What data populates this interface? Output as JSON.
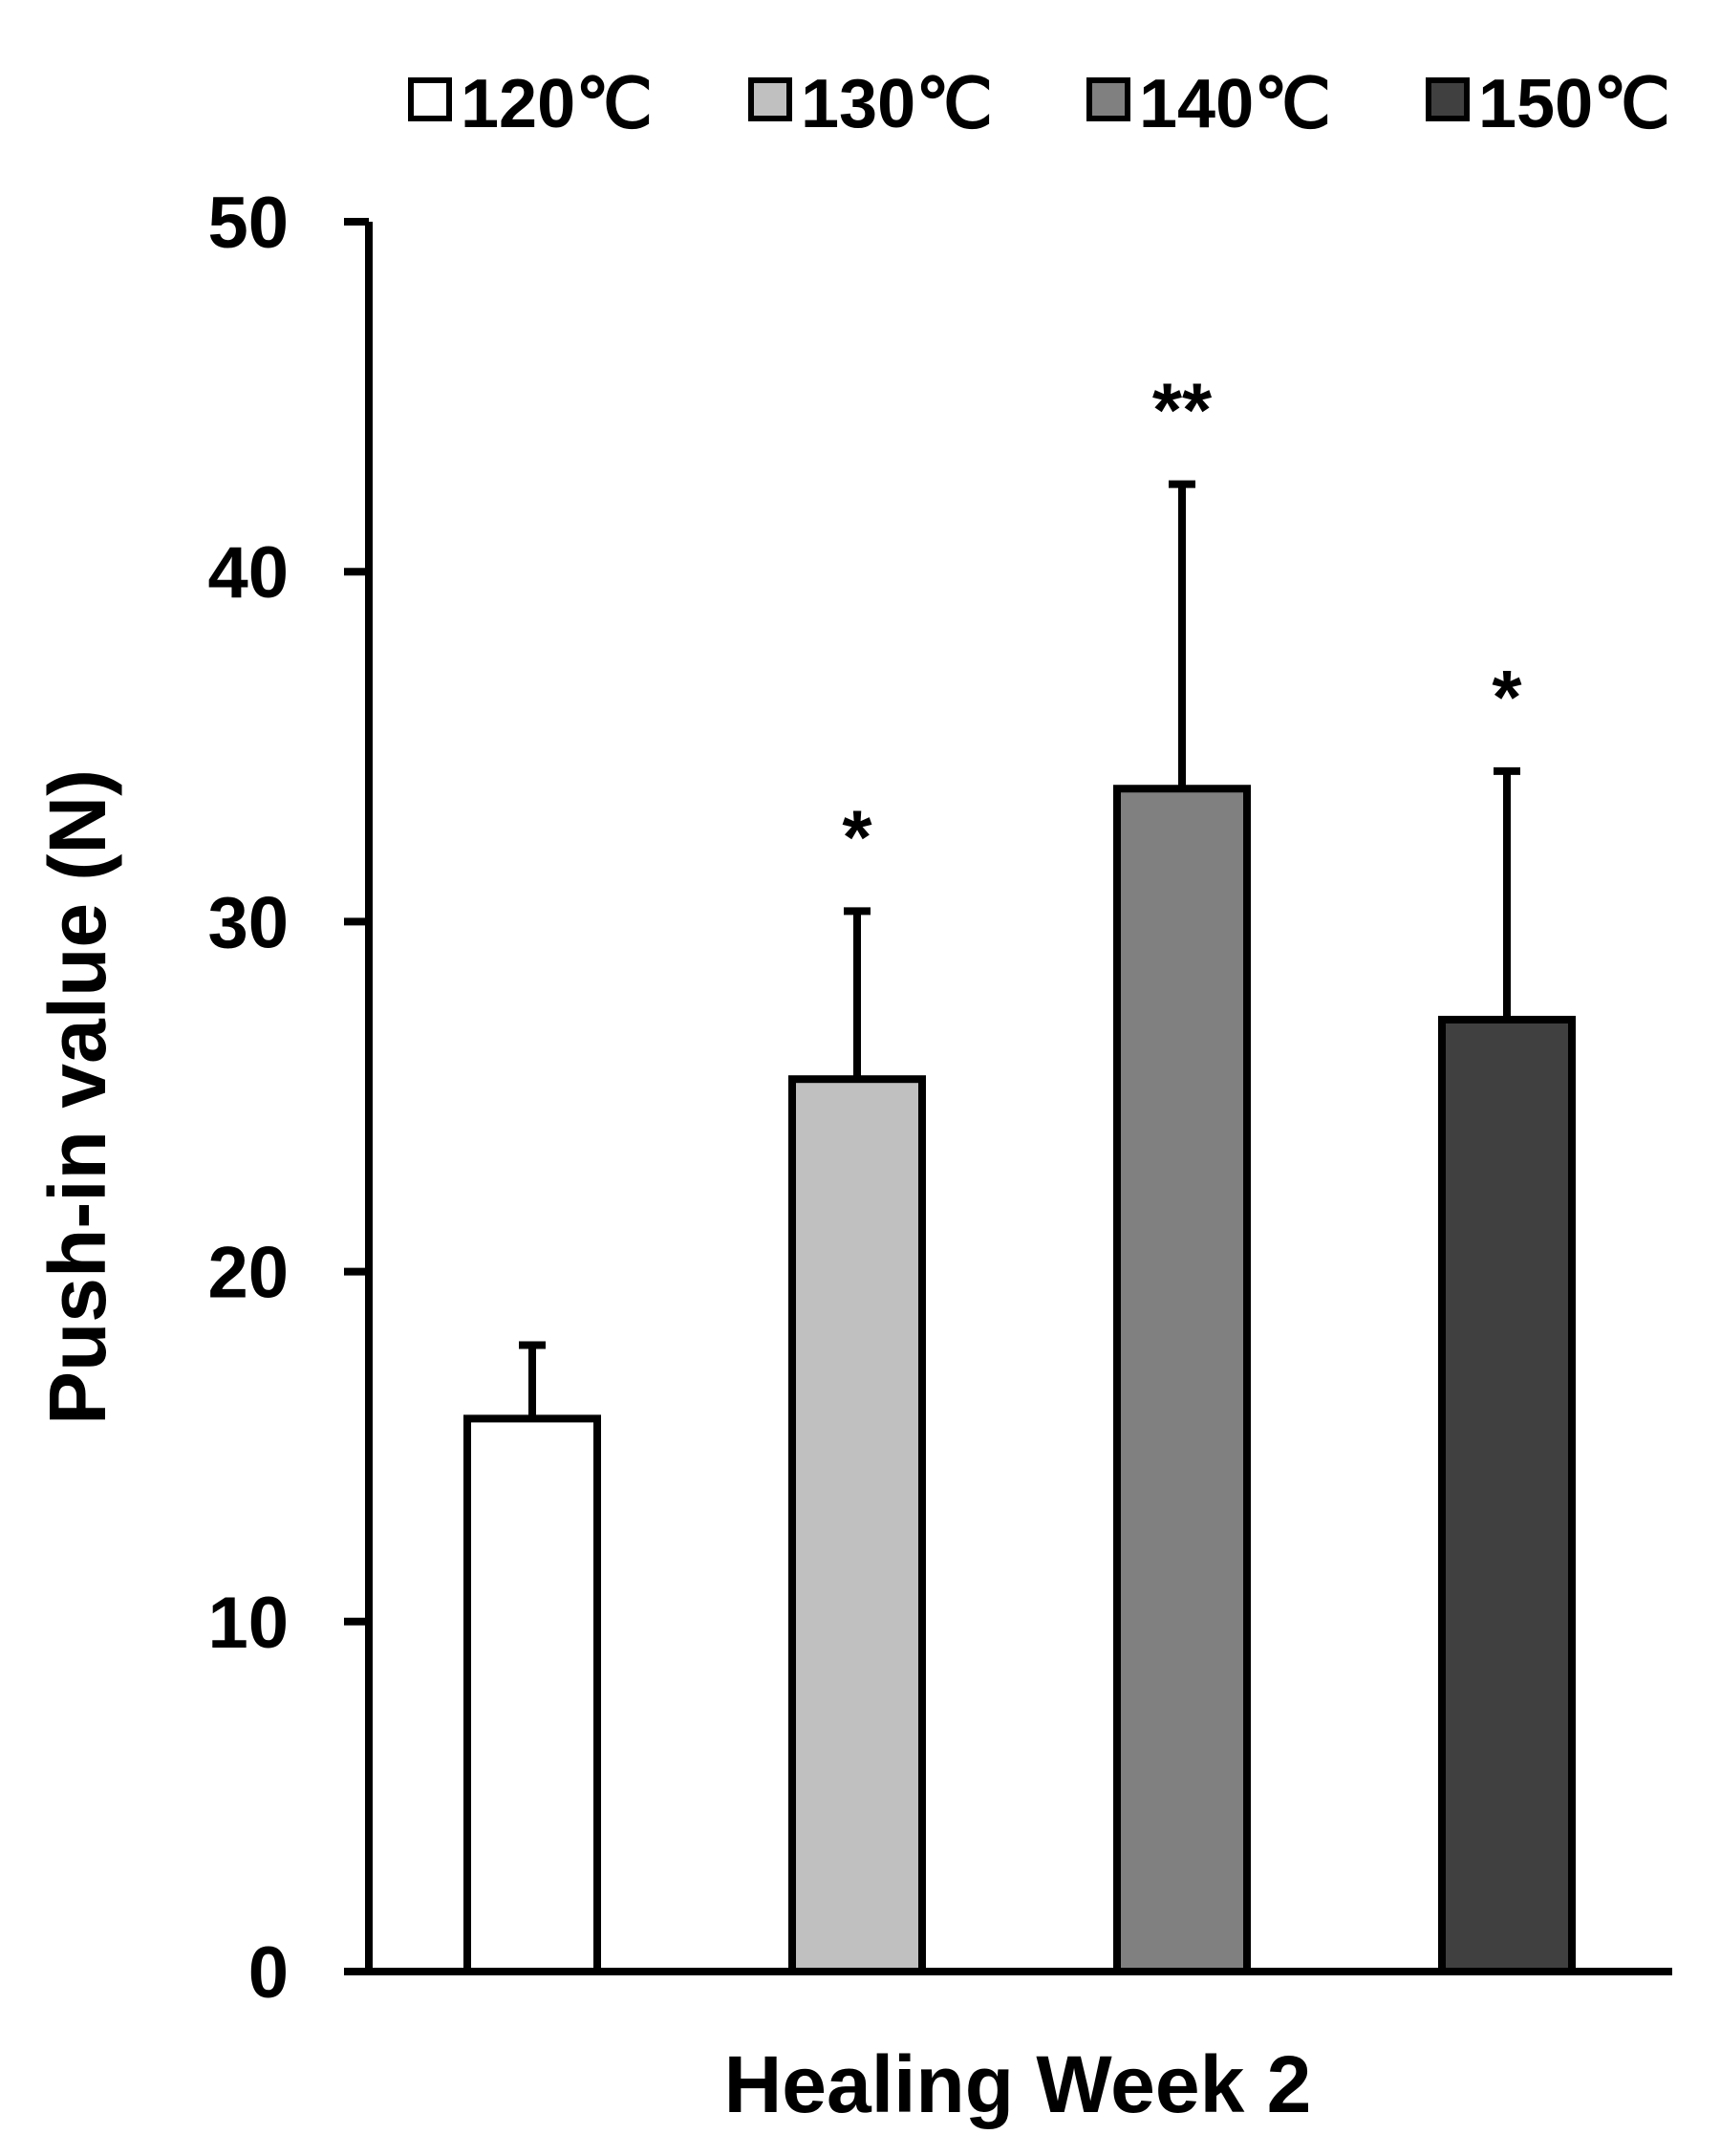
{
  "chart_data": {
    "type": "bar",
    "xlabel": "Healing Week 2",
    "ylabel": "Push-in value (N)",
    "ylim": [
      0,
      50
    ],
    "yticks": [
      "0",
      "10",
      "20",
      "30",
      "40",
      "50"
    ],
    "legend_position": "top",
    "series": [
      {
        "name": "120℃",
        "value": 15.8,
        "error": 2.1,
        "significance": "",
        "color": "#ffffff"
      },
      {
        "name": "130℃",
        "value": 25.5,
        "error": 4.8,
        "significance": "*",
        "color": "#c0c0c0"
      },
      {
        "name": "140℃",
        "value": 33.8,
        "error": 8.7,
        "significance": "**",
        "color": "#808080"
      },
      {
        "name": "150℃",
        "value": 27.2,
        "error": 7.1,
        "significance": "*",
        "color": "#404040"
      }
    ]
  }
}
